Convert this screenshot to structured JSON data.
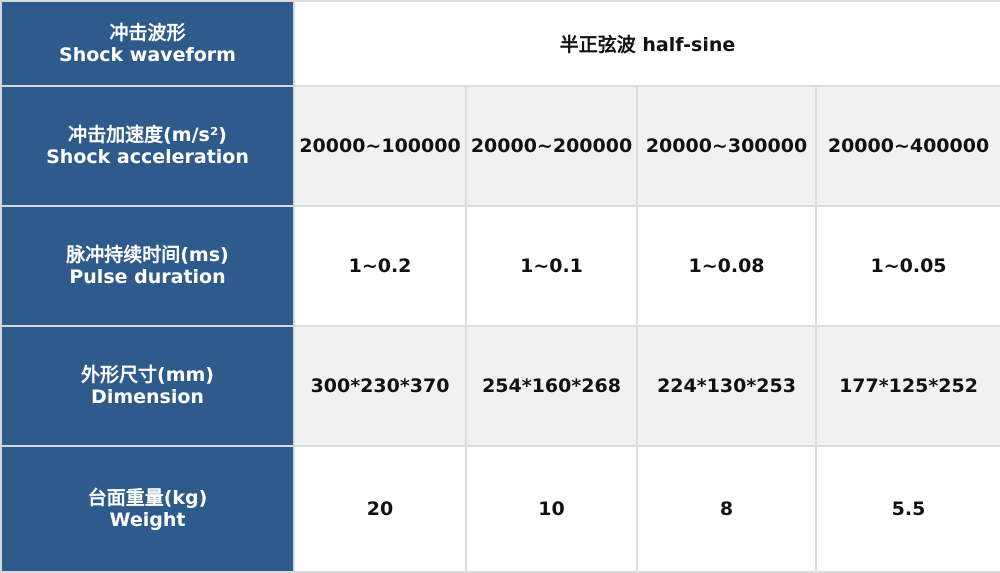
{
  "rows": [
    {
      "label_cn": "冲击波形",
      "label_en": "Shock waveform",
      "values": [
        "半正弦波  half-sine"
      ]
    },
    {
      "label_cn": "冲击加速度(m/s²)",
      "label_en": "Shock acceleration",
      "values": [
        "20000~100000",
        "20000~200000",
        "20000~300000",
        "20000~400000"
      ]
    },
    {
      "label_cn": "脉冲持续时间(ms)",
      "label_en": "Pulse duration",
      "values": [
        "1~0.2",
        "1~0.1",
        "1~0.08",
        "1~0.05"
      ]
    },
    {
      "label_cn": "外形尺寸(mm)",
      "label_en": "Dimension",
      "values": [
        "300*230*370",
        "254*160*268",
        "224*130*253",
        "177*125*252"
      ]
    },
    {
      "label_cn": "台面重量(kg)",
      "label_en": "Weight",
      "values": [
        "20",
        "10",
        "8",
        "5.5"
      ]
    }
  ],
  "colors": {
    "header_bg": "#2f5a8c",
    "alt_row_bg": "#f1f1f1"
  }
}
